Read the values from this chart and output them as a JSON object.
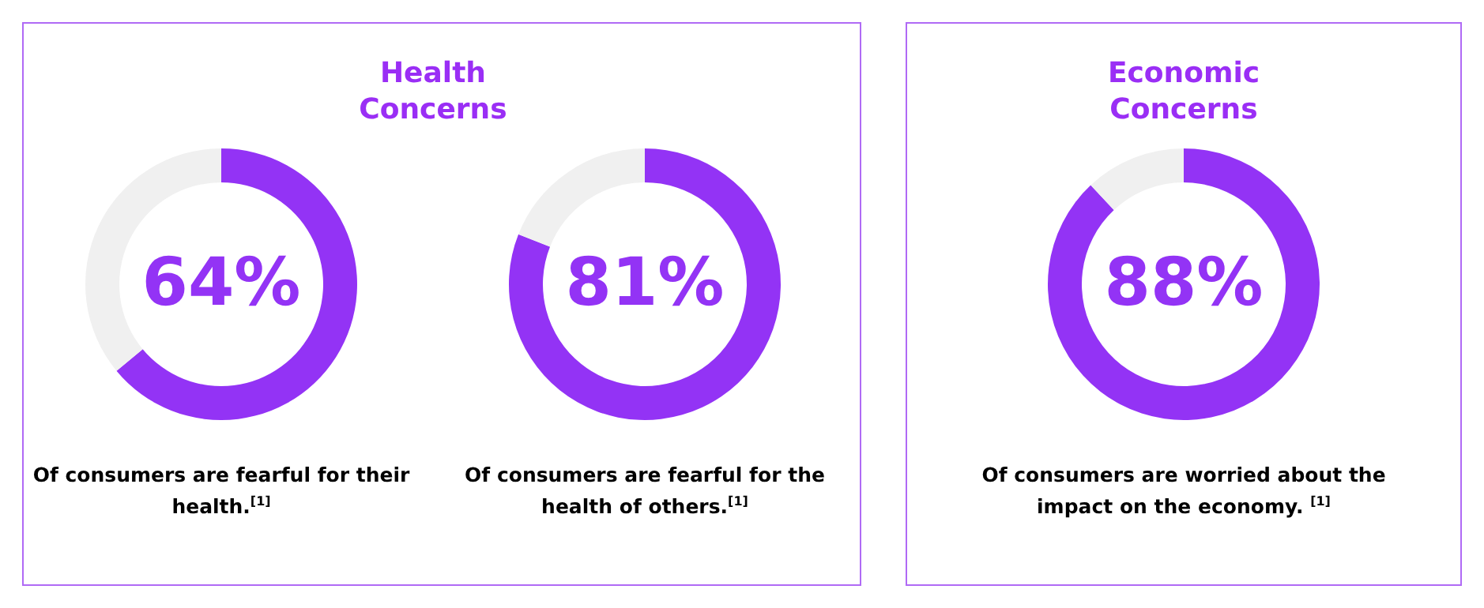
{
  "chart_data": [
    {
      "type": "donut",
      "title": "Health Concerns",
      "categories": [
        null,
        null
      ],
      "values": [
        64,
        36
      ],
      "colors": [
        "#9333f5",
        "#f0f0f0"
      ],
      "value_labels": [
        "64%",
        null
      ],
      "annotations": [
        "Of consumers are fearful for their health.$^{[1]}$"
      ]
    },
    {
      "type": "donut",
      "categories": [
        null,
        null
      ],
      "values": [
        81,
        19
      ],
      "colors": [
        "#9333f5",
        "#f0f0f0"
      ],
      "value_labels": [
        "81%",
        null
      ],
      "annotations": [
        "Of consumers are fearful  for the health of others.$^{[1]}$"
      ]
    },
    {
      "type": "donut",
      "title": "Economic Concerns",
      "categories": [
        null,
        null
      ],
      "values": [
        88,
        12
      ],
      "colors": [
        "#9333f5",
        "#f0f0f0"
      ],
      "value_labels": [
        "88%",
        null
      ],
      "annotations": [
        "Of consumers are worried about the impact on the economy. $^{[1]}$"
      ]
    }
  ]
}
